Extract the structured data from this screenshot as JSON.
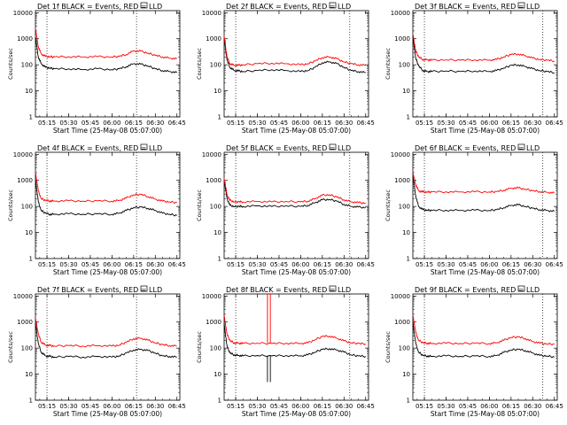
{
  "figure": {
    "start_time_label": "Start Time (25-May-08 05:07:00)",
    "y_axis_label": "Counts/sec",
    "x_tick_labels": [
      "05:15",
      "05:30",
      "05:45",
      "06:00",
      "06:15",
      "06:30",
      "06:45"
    ],
    "y_tick_labels": [
      "1",
      "10",
      "100",
      "1000",
      "10000"
    ]
  },
  "chart_data": [
    {
      "type": "line",
      "title": "Det 1f BLACK = Events, RED = LLD",
      "xlabel": "Start Time (25-May-08 05:07:00)",
      "ylabel": "Counts/sec",
      "y_scale": "log",
      "ylim": [
        1,
        12000
      ],
      "xlim": [
        "05:07",
        "06:47"
      ],
      "x": [
        "05:07",
        "05:09",
        "05:11",
        "05:14",
        "05:17",
        "05:20",
        "05:30",
        "05:40",
        "05:50",
        "06:00",
        "06:05",
        "06:10",
        "06:15",
        "06:20",
        "06:25",
        "06:30",
        "06:35",
        "06:40",
        "06:45"
      ],
      "series": [
        {
          "name": "Events",
          "color": "#000000",
          "values": [
            1200,
            200,
            110,
            80,
            75,
            70,
            70,
            65,
            70,
            65,
            70,
            85,
            110,
            105,
            90,
            70,
            60,
            55,
            50
          ]
        },
        {
          "name": "LLD",
          "color": "#ff0000",
          "values": [
            2500,
            500,
            260,
            210,
            205,
            200,
            205,
            200,
            205,
            200,
            210,
            250,
            340,
            330,
            280,
            230,
            200,
            180,
            170
          ]
        }
      ],
      "vertical_markers": [
        "05:15",
        "06:17"
      ]
    },
    {
      "type": "line",
      "title": "Det 2f BLACK = Events, RED = LLD",
      "xlabel": "Start Time (25-May-08 05:07:00)",
      "ylabel": "Counts/sec",
      "y_scale": "log",
      "ylim": [
        1,
        12000
      ],
      "xlim": [
        "05:07",
        "06:47"
      ],
      "x": [
        "05:07",
        "05:09",
        "05:11",
        "05:14",
        "05:17",
        "05:20",
        "05:30",
        "05:40",
        "05:50",
        "06:00",
        "06:05",
        "06:10",
        "06:15",
        "06:20",
        "06:25",
        "06:30",
        "06:35",
        "06:40",
        "06:45"
      ],
      "series": [
        {
          "name": "Events",
          "color": "#000000",
          "values": [
            1000,
            150,
            80,
            60,
            58,
            55,
            60,
            65,
            60,
            55,
            60,
            80,
            120,
            130,
            110,
            80,
            60,
            55,
            50
          ]
        },
        {
          "name": "LLD",
          "color": "#ff0000",
          "values": [
            1300,
            200,
            110,
            95,
            95,
            100,
            110,
            115,
            110,
            100,
            110,
            140,
            190,
            200,
            170,
            130,
            110,
            100,
            95
          ]
        }
      ],
      "vertical_markers": [
        "05:15",
        "06:34"
      ]
    },
    {
      "type": "line",
      "title": "Det 3f BLACK = Events, RED = LLD",
      "xlabel": "Start Time (25-May-08 05:07:00)",
      "ylabel": "Counts/sec",
      "y_scale": "log",
      "ylim": [
        1,
        12000
      ],
      "xlim": [
        "05:07",
        "06:47"
      ],
      "x": [
        "05:07",
        "05:09",
        "05:11",
        "05:14",
        "05:17",
        "05:20",
        "05:30",
        "05:40",
        "05:50",
        "06:00",
        "06:05",
        "06:10",
        "06:15",
        "06:20",
        "06:25",
        "06:30",
        "06:35",
        "06:40",
        "06:45"
      ],
      "series": [
        {
          "name": "Events",
          "color": "#000000",
          "values": [
            1200,
            180,
            90,
            60,
            55,
            55,
            58,
            55,
            58,
            55,
            60,
            75,
            95,
            100,
            85,
            70,
            60,
            55,
            50
          ]
        },
        {
          "name": "LLD",
          "color": "#ff0000",
          "values": [
            1500,
            350,
            200,
            160,
            155,
            150,
            155,
            150,
            155,
            150,
            160,
            200,
            250,
            260,
            220,
            180,
            160,
            150,
            140
          ]
        }
      ],
      "vertical_markers": [
        "05:15",
        "06:37"
      ]
    },
    {
      "type": "line",
      "title": "Det 4f BLACK = Events, RED = LLD",
      "xlabel": "Start Time (25-May-08 05:07:00)",
      "ylabel": "Counts/sec",
      "y_scale": "log",
      "ylim": [
        1,
        12000
      ],
      "xlim": [
        "05:07",
        "06:47"
      ],
      "x": [
        "05:07",
        "05:09",
        "05:11",
        "05:14",
        "05:17",
        "05:20",
        "05:30",
        "05:40",
        "05:50",
        "06:00",
        "06:05",
        "06:10",
        "06:15",
        "06:20",
        "06:25",
        "06:30",
        "06:35",
        "06:40",
        "06:45"
      ],
      "series": [
        {
          "name": "Events",
          "color": "#000000",
          "values": [
            1100,
            150,
            70,
            55,
            50,
            50,
            52,
            50,
            52,
            50,
            55,
            70,
            90,
            95,
            85,
            70,
            55,
            50,
            45
          ]
        },
        {
          "name": "LLD",
          "color": "#ff0000",
          "values": [
            2200,
            400,
            200,
            170,
            165,
            160,
            165,
            160,
            165,
            160,
            170,
            210,
            280,
            290,
            240,
            190,
            160,
            150,
            140
          ]
        }
      ],
      "vertical_markers": [
        "05:15",
        "06:17"
      ]
    },
    {
      "type": "line",
      "title": "Det 5f BLACK = Events, RED = LLD",
      "xlabel": "Start Time (25-May-08 05:07:00)",
      "ylabel": "Counts/sec",
      "y_scale": "log",
      "ylim": [
        1,
        12000
      ],
      "xlim": [
        "05:07",
        "06:47"
      ],
      "x": [
        "05:07",
        "05:09",
        "05:11",
        "05:14",
        "05:17",
        "05:20",
        "05:30",
        "05:40",
        "05:50",
        "06:00",
        "06:05",
        "06:10",
        "06:15",
        "06:20",
        "06:25",
        "06:30",
        "06:35",
        "06:40",
        "06:45"
      ],
      "series": [
        {
          "name": "Events",
          "color": "#000000",
          "values": [
            1000,
            200,
            110,
            100,
            100,
            100,
            105,
            100,
            105,
            100,
            110,
            140,
            180,
            185,
            160,
            120,
            100,
            95,
            90
          ]
        },
        {
          "name": "LLD",
          "color": "#ff0000",
          "values": [
            1200,
            280,
            170,
            150,
            150,
            150,
            155,
            150,
            155,
            150,
            160,
            200,
            270,
            280,
            230,
            180,
            150,
            140,
            135
          ]
        }
      ],
      "vertical_markers": [
        "05:15",
        "06:34"
      ]
    },
    {
      "type": "line",
      "title": "Det 6f BLACK = Events, RED = LLD",
      "xlabel": "Start Time (25-May-08 05:07:00)",
      "ylabel": "Counts/sec",
      "y_scale": "log",
      "ylim": [
        1,
        12000
      ],
      "xlim": [
        "05:07",
        "06:47"
      ],
      "x": [
        "05:07",
        "05:09",
        "05:11",
        "05:14",
        "05:17",
        "05:20",
        "05:30",
        "05:40",
        "05:50",
        "06:00",
        "06:05",
        "06:10",
        "06:15",
        "06:20",
        "06:25",
        "06:30",
        "06:35",
        "06:40",
        "06:45"
      ],
      "series": [
        {
          "name": "Events",
          "color": "#000000",
          "values": [
            1500,
            250,
            100,
            75,
            72,
            70,
            72,
            70,
            72,
            70,
            75,
            90,
            110,
            115,
            100,
            85,
            75,
            70,
            65
          ]
        },
        {
          "name": "LLD",
          "color": "#ff0000",
          "values": [
            2000,
            700,
            400,
            360,
            360,
            360,
            365,
            360,
            365,
            360,
            370,
            420,
            500,
            510,
            460,
            400,
            370,
            350,
            330
          ]
        }
      ],
      "vertical_markers": [
        "05:15",
        "06:37"
      ]
    },
    {
      "type": "line",
      "title": "Det 7f BLACK = Events, RED = LLD",
      "xlabel": "Start Time (25-May-08 05:07:00)",
      "ylabel": "Counts/sec",
      "y_scale": "log",
      "ylim": [
        1,
        12000
      ],
      "xlim": [
        "05:07",
        "06:47"
      ],
      "x": [
        "05:07",
        "05:09",
        "05:11",
        "05:14",
        "05:17",
        "05:20",
        "05:30",
        "05:40",
        "05:50",
        "06:00",
        "06:05",
        "06:10",
        "06:15",
        "06:20",
        "06:25",
        "06:30",
        "06:35",
        "06:40",
        "06:45"
      ],
      "series": [
        {
          "name": "Events",
          "color": "#000000",
          "values": [
            900,
            150,
            70,
            50,
            48,
            45,
            48,
            45,
            48,
            45,
            50,
            65,
            85,
            90,
            80,
            65,
            50,
            48,
            45
          ]
        },
        {
          "name": "LLD",
          "color": "#ff0000",
          "values": [
            1500,
            350,
            170,
            130,
            125,
            120,
            125,
            120,
            125,
            120,
            130,
            170,
            230,
            240,
            200,
            160,
            135,
            125,
            120
          ]
        }
      ],
      "vertical_markers": [
        "05:15",
        "06:17"
      ]
    },
    {
      "type": "line",
      "title": "Det 8f BLACK = Events, RED = LLD",
      "xlabel": "Start Time (25-May-08 05:07:00)",
      "ylabel": "Counts/sec",
      "y_scale": "log",
      "ylim": [
        1,
        12000
      ],
      "xlim": [
        "05:07",
        "06:47"
      ],
      "x": [
        "05:07",
        "05:09",
        "05:11",
        "05:14",
        "05:17",
        "05:20",
        "05:30",
        "05:40",
        "05:50",
        "06:00",
        "06:05",
        "06:10",
        "06:15",
        "06:20",
        "06:25",
        "06:30",
        "06:35",
        "06:40",
        "06:45"
      ],
      "series": [
        {
          "name": "Events",
          "color": "#000000",
          "values": [
            800,
            120,
            65,
            55,
            52,
            50,
            52,
            50,
            52,
            50,
            55,
            70,
            90,
            95,
            85,
            70,
            55,
            50,
            48
          ]
        },
        {
          "name": "LLD",
          "color": "#ff0000",
          "values": [
            1800,
            350,
            190,
            160,
            155,
            150,
            155,
            150,
            155,
            150,
            160,
            210,
            280,
            290,
            240,
            190,
            160,
            150,
            145
          ]
        }
      ],
      "spikes": [
        {
          "x": "05:37",
          "series": "LLD",
          "value": 12000
        },
        {
          "x": "05:39",
          "series": "LLD",
          "value": 12000
        },
        {
          "x": "05:37",
          "series": "Events",
          "value": 5
        },
        {
          "x": "05:39",
          "series": "Events",
          "value": 5
        }
      ],
      "vertical_markers": [
        "05:15",
        "06:34"
      ]
    },
    {
      "type": "line",
      "title": "Det 9f BLACK = Events, RED = LLD",
      "xlabel": "Start Time (25-May-08 05:07:00)",
      "ylabel": "Counts/sec",
      "y_scale": "log",
      "ylim": [
        1,
        12000
      ],
      "xlim": [
        "05:07",
        "06:47"
      ],
      "x": [
        "05:07",
        "05:09",
        "05:11",
        "05:14",
        "05:17",
        "05:20",
        "05:30",
        "05:40",
        "05:50",
        "06:00",
        "06:05",
        "06:10",
        "06:15",
        "06:20",
        "06:25",
        "06:30",
        "06:35",
        "06:40",
        "06:45"
      ],
      "series": [
        {
          "name": "Events",
          "color": "#000000",
          "values": [
            1000,
            150,
            70,
            52,
            50,
            48,
            50,
            48,
            50,
            48,
            52,
            68,
            85,
            90,
            80,
            65,
            52,
            50,
            45
          ]
        },
        {
          "name": "LLD",
          "color": "#ff0000",
          "values": [
            2000,
            400,
            200,
            160,
            155,
            150,
            155,
            150,
            155,
            150,
            160,
            200,
            260,
            270,
            230,
            180,
            155,
            145,
            140
          ]
        }
      ],
      "vertical_markers": [
        "05:15",
        "06:37"
      ]
    }
  ]
}
